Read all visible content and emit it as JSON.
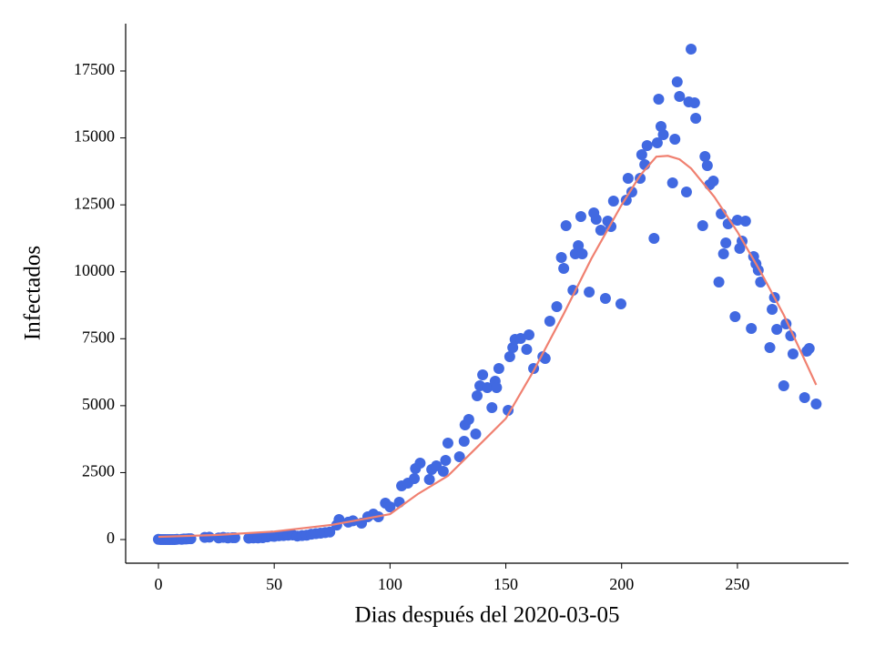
{
  "chart_data": {
    "type": "scatter",
    "xlabel": "Dias después del 2020-03-05",
    "ylabel": "Infectados",
    "xlim": [
      -14.15,
      298
    ],
    "ylim": [
      -883,
      19267
    ],
    "xticks": [
      0,
      50,
      100,
      150,
      200,
      250
    ],
    "yticks": [
      0,
      2500,
      5000,
      7500,
      10000,
      12500,
      15000,
      17500
    ],
    "series": [
      {
        "type": "scatter",
        "color": "#4169e1",
        "x": [
          0,
          1,
          2,
          3,
          4,
          5,
          6,
          7,
          8,
          10,
          11,
          12,
          13,
          14,
          20,
          22,
          26,
          28,
          30,
          32,
          33,
          39,
          41,
          43,
          45,
          47,
          49,
          50,
          52,
          54,
          56,
          58,
          60,
          62,
          64,
          66,
          68,
          70,
          72,
          74,
          77,
          78,
          82,
          84,
          87.7,
          90.4,
          92.8,
          95,
          98,
          100,
          104,
          105,
          107.7,
          110.5,
          111,
          113,
          117,
          118,
          120,
          123,
          124,
          125,
          130,
          132,
          132.4,
          134,
          137,
          137.6,
          138.8,
          140,
          142,
          144,
          145.4,
          146,
          147,
          151,
          151.7,
          153,
          154,
          156.4,
          159,
          160,
          162,
          166,
          167,
          169,
          172,
          174,
          175,
          176,
          179,
          180,
          181.3,
          182.4,
          183,
          186,
          188,
          189,
          191,
          193,
          194,
          195.4,
          196.5,
          199.7,
          202,
          202.8,
          204.4,
          208,
          208.7,
          210,
          211,
          214,
          215.4,
          216,
          217,
          218,
          222,
          223,
          224,
          225,
          228,
          229,
          230,
          231.5,
          232,
          235,
          236,
          237,
          238,
          239.6,
          242,
          243,
          244,
          245,
          246,
          249,
          250,
          251,
          252,
          253.5,
          256,
          257,
          258,
          259,
          260,
          264,
          265,
          266,
          267,
          270,
          271,
          273,
          274,
          279,
          280,
          281,
          284
        ],
        "values": [
          10,
          0,
          0,
          0,
          0,
          0,
          0,
          0,
          10,
          10,
          20,
          20,
          30,
          30,
          80,
          90,
          60,
          80,
          60,
          70,
          70,
          50,
          60,
          60,
          70,
          100,
          130,
          120,
          140,
          150,
          160,
          170,
          130,
          150,
          160,
          200,
          220,
          240,
          260,
          280,
          540,
          750,
          650,
          700,
          610,
          850,
          950,
          850,
          1360,
          1220,
          1393,
          2005,
          2107,
          2277,
          2650,
          2854,
          2243,
          2616,
          2752,
          2548,
          2956,
          3602,
          3092,
          3670,
          4282,
          4485,
          3942,
          5369,
          5743,
          6150,
          5675,
          4927,
          5913,
          5675,
          6388,
          4825,
          6830,
          7170,
          7476,
          7510,
          7102,
          7646,
          6388,
          6830,
          6762,
          8155,
          8699,
          10534,
          10126,
          11723,
          9311,
          10670,
          10976,
          12063,
          10670,
          9243,
          12199,
          11961,
          11553,
          9005,
          11893,
          11689,
          12640,
          8801,
          12674,
          13490,
          12980,
          13490,
          14373,
          14000,
          14713,
          11247,
          14815,
          16446,
          15427,
          15121,
          13320,
          14951,
          17091,
          16548,
          12980,
          16344,
          18315,
          16310,
          15733,
          11723,
          14305,
          13966,
          13252,
          13388,
          9617,
          12165,
          10670,
          11078,
          11791,
          8325,
          11927,
          10874,
          11146,
          11893,
          7884,
          10568,
          10296,
          10058,
          9617,
          7170,
          8597,
          9039,
          7850,
          5743,
          8053,
          7612,
          6932,
          5301,
          7034,
          7136,
          5063
        ]
      },
      {
        "type": "line",
        "color": "#f08070",
        "x": [
          0,
          25,
          50,
          75,
          100,
          112,
          125,
          137,
          150,
          162,
          175,
          187,
          200,
          208,
          215,
          220,
          225,
          230,
          240,
          250,
          260,
          270,
          278,
          284
        ],
        "values": [
          100,
          170,
          300,
          550,
          950,
          1700,
          2380,
          3400,
          4520,
          6300,
          8430,
          10500,
          12500,
          13600,
          14300,
          14330,
          14200,
          13860,
          12800,
          11490,
          10000,
          8390,
          6900,
          5777
        ]
      }
    ]
  }
}
